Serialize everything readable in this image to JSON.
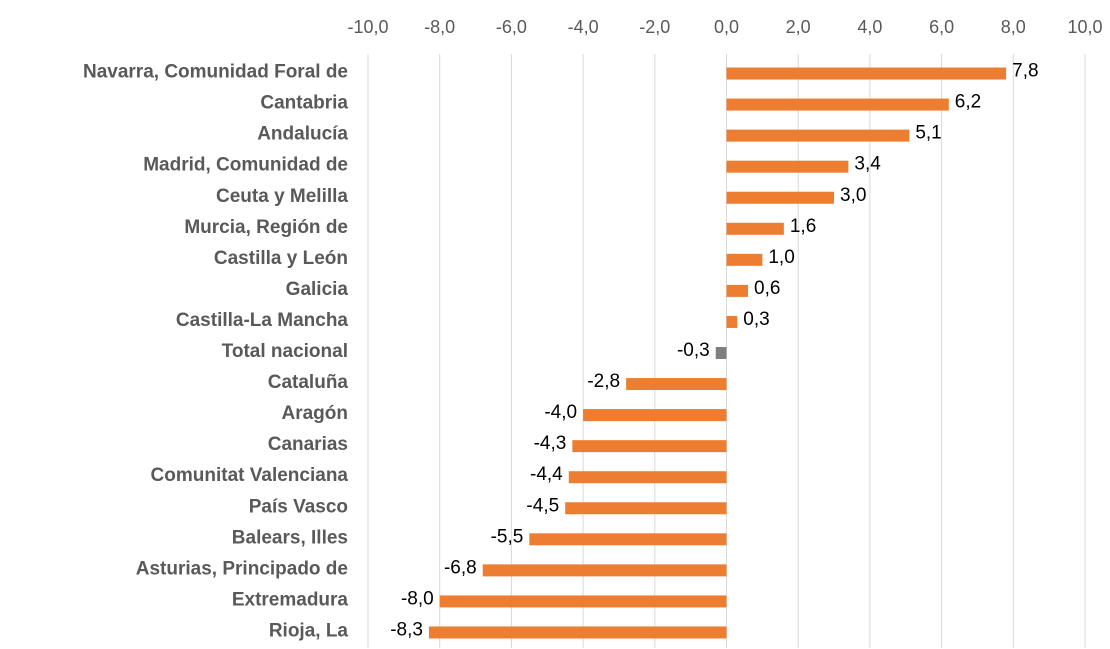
{
  "chart_data": {
    "type": "hbar",
    "categories": [
      "Navarra, Comunidad Foral de",
      "Cantabria",
      "Andalucía",
      "Madrid, Comunidad de",
      "Ceuta y Melilla",
      "Murcia, Región de",
      "Castilla y León",
      "Galicia",
      "Castilla-La Mancha",
      "Total nacional",
      "Cataluña",
      "Aragón",
      "Canarias",
      "Comunitat Valenciana",
      "País Vasco",
      "Balears, Illes",
      "Asturias, Principado de",
      "Extremadura",
      "Rioja, La"
    ],
    "values": [
      7.8,
      6.2,
      5.1,
      3.4,
      3.0,
      1.6,
      1.0,
      0.6,
      0.3,
      -0.3,
      -2.8,
      -4.0,
      -4.3,
      -4.4,
      -4.5,
      -5.5,
      -6.8,
      -8.0,
      -8.3
    ],
    "value_labels": [
      "7,8",
      "6,2",
      "5,1",
      "3,4",
      "3,0",
      "1,6",
      "1,0",
      "0,6",
      "0,3",
      "-0,3",
      "-2,8",
      "-4,0",
      "-4,3",
      "-4,4",
      "-4,5",
      "-5,5",
      "-6,8",
      "-8,0",
      "-8,3"
    ],
    "colors": [
      "#ed7d31",
      "#ed7d31",
      "#ed7d31",
      "#ed7d31",
      "#ed7d31",
      "#ed7d31",
      "#ed7d31",
      "#ed7d31",
      "#ed7d31",
      "#7f7f7f",
      "#ed7d31",
      "#ed7d31",
      "#ed7d31",
      "#ed7d31",
      "#ed7d31",
      "#ed7d31",
      "#ed7d31",
      "#ed7d31",
      "#ed7d31"
    ],
    "xlim": [
      -10,
      10
    ],
    "xticks": [
      {
        "value": -10,
        "label": "-10,0"
      },
      {
        "value": -8,
        "label": "-8,0"
      },
      {
        "value": -6,
        "label": "-6,0"
      },
      {
        "value": -4,
        "label": "-4,0"
      },
      {
        "value": -2,
        "label": "-2,0"
      },
      {
        "value": 0,
        "label": "0,0"
      },
      {
        "value": 2,
        "label": "2,0"
      },
      {
        "value": 4,
        "label": "4,0"
      },
      {
        "value": 6,
        "label": "6,0"
      },
      {
        "value": 8,
        "label": "8,0"
      },
      {
        "value": 10,
        "label": "10,0"
      }
    ],
    "grid": true
  }
}
